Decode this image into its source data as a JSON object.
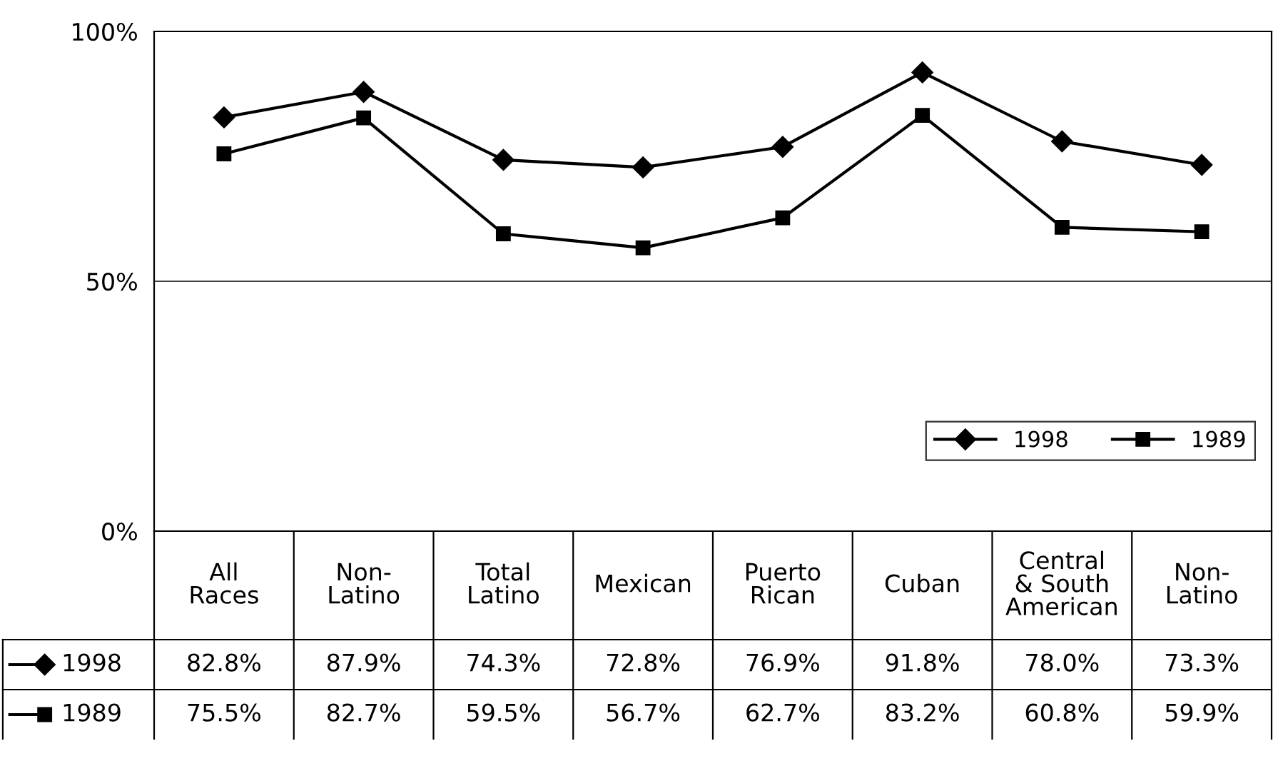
{
  "chart_data": {
    "type": "line",
    "categories": [
      "All\nRaces",
      "Non-\nLatino",
      "Total\nLatino",
      "Mexican",
      "Puerto\nRican",
      "Cuban",
      "Central\n& South\nAmerican",
      "Non-\nLatino"
    ],
    "series": [
      {
        "name": "1998",
        "color": "#000000",
        "marker": "diamond",
        "values": [
          82.8,
          87.9,
          74.3,
          72.8,
          76.9,
          91.8,
          78.0,
          73.3
        ],
        "value_labels": [
          "82.8%",
          "87.9%",
          "74.3%",
          "72.8%",
          "76.9%",
          "91.8%",
          "78.0%",
          "73.3%"
        ]
      },
      {
        "name": "1989",
        "color": "#000000",
        "marker": "square",
        "values": [
          75.5,
          82.7,
          59.5,
          56.7,
          62.7,
          83.2,
          60.8,
          59.9
        ],
        "value_labels": [
          "75.5%",
          "82.7%",
          "59.5%",
          "56.7%",
          "62.7%",
          "83.2%",
          "60.8%",
          "59.9%"
        ]
      }
    ],
    "ylim": [
      0,
      100
    ],
    "yticks": [
      {
        "value": 0,
        "label": "0%"
      },
      {
        "value": 50,
        "label": "50%"
      },
      {
        "value": 100,
        "label": "100%"
      }
    ],
    "grid": "y",
    "legend": "bottom right",
    "line_style": "solid"
  }
}
